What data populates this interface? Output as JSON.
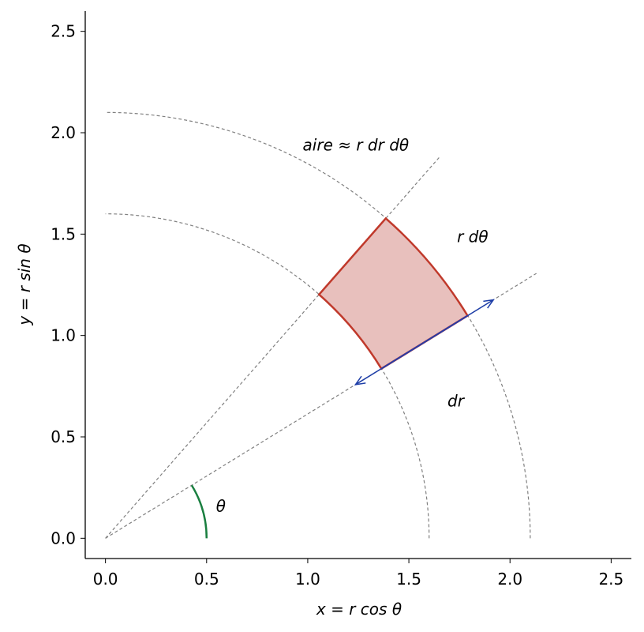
{
  "chart_data": {
    "type": "polar-element",
    "xlabel": "x = r cos θ",
    "ylabel": "y = r sin θ",
    "xlim": [
      -0.1,
      2.6
    ],
    "ylim": [
      -0.1,
      2.6
    ],
    "xticks": [
      {
        "value": 0,
        "label": "0.0"
      },
      0.5,
      {
        "value": 1,
        "label": "1.0"
      },
      1.5,
      {
        "value": 2,
        "label": "2.0"
      },
      2.5
    ],
    "yticks": [
      {
        "value": 0,
        "label": "0.0"
      },
      0.5,
      {
        "value": 1,
        "label": "1.0"
      },
      1.5,
      {
        "value": 2,
        "label": "2.0"
      },
      2.5
    ],
    "radii": [
      1.6,
      2.1
    ],
    "angles": [
      0.55,
      0.85
    ],
    "theta_radius": 0.5,
    "annotations": {
      "area": "aire ≈ r dr dθ",
      "arc": "r dθ",
      "radial": "dr",
      "angle": "θ"
    },
    "colors": {
      "area": "#c0392b",
      "fill": "#e8c0bd",
      "arrow": "#1f3fa8",
      "angle": "#1a7f40",
      "guide": "#808080"
    }
  }
}
